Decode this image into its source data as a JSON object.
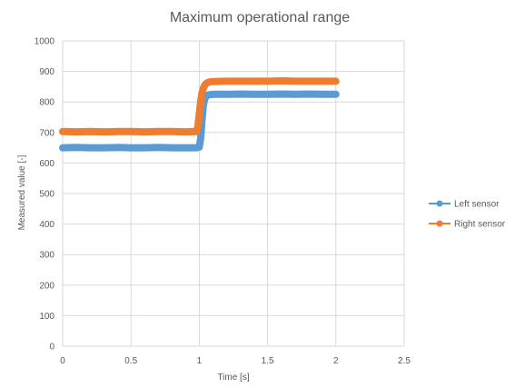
{
  "chart_data": {
    "type": "line",
    "title": "Maximum operational range",
    "xlabel": "Time [s]",
    "ylabel": "Measured value [-]",
    "xlim": [
      0,
      2.5
    ],
    "ylim": [
      0,
      1000
    ],
    "xticks": [
      0,
      0.5,
      1,
      1.5,
      2,
      2.5
    ],
    "yticks": [
      0,
      100,
      200,
      300,
      400,
      500,
      600,
      700,
      800,
      900,
      1000
    ],
    "grid": true,
    "legend_position": "right",
    "series": [
      {
        "name": "Left sensor",
        "color": "#5B9BD5",
        "marker": "circle",
        "x": [
          0,
          0.1,
          0.2,
          0.3,
          0.4,
          0.5,
          0.6,
          0.7,
          0.8,
          0.9,
          0.98,
          1.0,
          1.01,
          1.02,
          1.03,
          1.04,
          1.05,
          1.06,
          1.08,
          1.1,
          1.2,
          1.3,
          1.4,
          1.5,
          1.6,
          1.7,
          1.8,
          1.9,
          2.0
        ],
        "y": [
          650,
          651,
          650,
          650,
          651,
          650,
          650,
          651,
          650,
          650,
          650,
          652,
          680,
          740,
          790,
          810,
          818,
          822,
          824,
          825,
          825,
          826,
          825,
          825,
          826,
          825,
          826,
          825,
          825
        ]
      },
      {
        "name": "Right sensor",
        "color": "#ED7D31",
        "marker": "circle",
        "x": [
          0,
          0.1,
          0.2,
          0.3,
          0.4,
          0.5,
          0.6,
          0.7,
          0.8,
          0.9,
          0.98,
          0.99,
          1.0,
          1.01,
          1.02,
          1.03,
          1.04,
          1.05,
          1.06,
          1.08,
          1.1,
          1.2,
          1.3,
          1.4,
          1.5,
          1.6,
          1.7,
          1.8,
          1.9,
          2.0
        ],
        "y": [
          703,
          702,
          703,
          702,
          703,
          703,
          702,
          703,
          703,
          702,
          703,
          720,
          760,
          800,
          830,
          845,
          855,
          860,
          863,
          866,
          867,
          868,
          868,
          868,
          868,
          869,
          868,
          868,
          868,
          868
        ]
      }
    ]
  }
}
